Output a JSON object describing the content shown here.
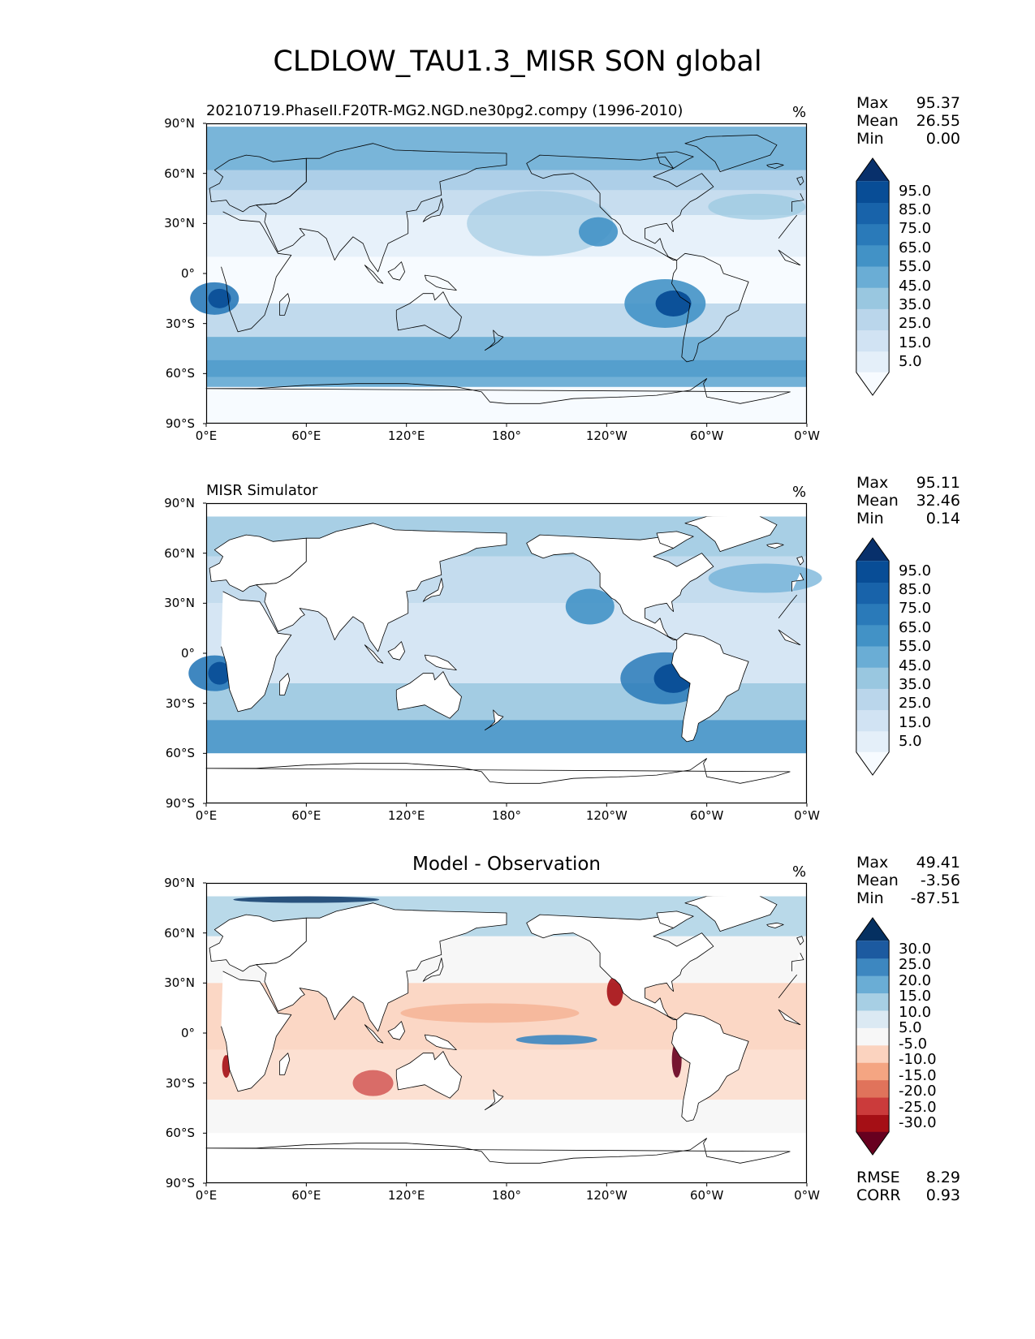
{
  "figure_title": "CLDLOW_TAU1.3_MISR SON global",
  "panels": [
    {
      "id": "model",
      "title_left": "20210719.PhaseII.F20TR-MG2.NGD.ne30pg2.compy (1996-2010)",
      "title_center": "",
      "units": "%",
      "stats": {
        "max_label": "Max",
        "max": "95.37",
        "mean_label": "Mean",
        "mean": "26.55",
        "min_label": "Min",
        "min": "0.00"
      },
      "colorbar": {
        "tick_labels": [
          "95.0",
          "85.0",
          "75.0",
          "65.0",
          "55.0",
          "45.0",
          "35.0",
          "25.0",
          "15.0",
          "5.0"
        ],
        "colors": [
          "#f7fbff",
          "#e4eff9",
          "#d1e3f3",
          "#bad6eb",
          "#99c7e0",
          "#6aadd5",
          "#4292c6",
          "#2a7ab9",
          "#1863aa",
          "#084d96",
          "#08306b"
        ]
      }
    },
    {
      "id": "obs",
      "title_left": "MISR Simulator",
      "title_center": "",
      "units": "%",
      "stats": {
        "max_label": "Max",
        "max": "95.11",
        "mean_label": "Mean",
        "mean": "32.46",
        "min_label": "Min",
        "min": "0.14"
      },
      "colorbar": {
        "tick_labels": [
          "95.0",
          "85.0",
          "75.0",
          "65.0",
          "55.0",
          "45.0",
          "35.0",
          "25.0",
          "15.0",
          "5.0"
        ],
        "colors": [
          "#f7fbff",
          "#e4eff9",
          "#d1e3f3",
          "#bad6eb",
          "#99c7e0",
          "#6aadd5",
          "#4292c6",
          "#2a7ab9",
          "#1863aa",
          "#084d96",
          "#08306b"
        ]
      }
    },
    {
      "id": "diff",
      "title_left": "",
      "title_center": "Model - Observation",
      "units": "%",
      "stats": {
        "max_label": "Max",
        "max": "49.41",
        "mean_label": "Mean",
        "mean": "-3.56",
        "min_label": "Min",
        "min": "-87.51"
      },
      "colorbar": {
        "tick_labels": [
          "30.0",
          "25.0",
          "20.0",
          "15.0",
          "10.0",
          "5.0",
          "-5.0",
          "-10.0",
          "-15.0",
          "-20.0",
          "-25.0",
          "-30.0"
        ],
        "colors": [
          "#67001f",
          "#a50f15",
          "#cb3b3b",
          "#e0735b",
          "#f4a582",
          "#fbd3bf",
          "#f7f7f7",
          "#dbe9f3",
          "#a7cfe4",
          "#6aadd5",
          "#3d87c0",
          "#1c5aa0",
          "#053061"
        ]
      },
      "metrics": {
        "rmse_label": "RMSE",
        "rmse": "8.29",
        "corr_label": "CORR",
        "corr": "0.93"
      }
    }
  ],
  "axes": {
    "y_ticks": [
      "90°N",
      "60°N",
      "30°N",
      "0°",
      "30°S",
      "60°S",
      "90°S"
    ],
    "x_ticks": [
      "0°E",
      "60°E",
      "120°E",
      "180°",
      "120°W",
      "60°W",
      "0°W"
    ]
  }
}
